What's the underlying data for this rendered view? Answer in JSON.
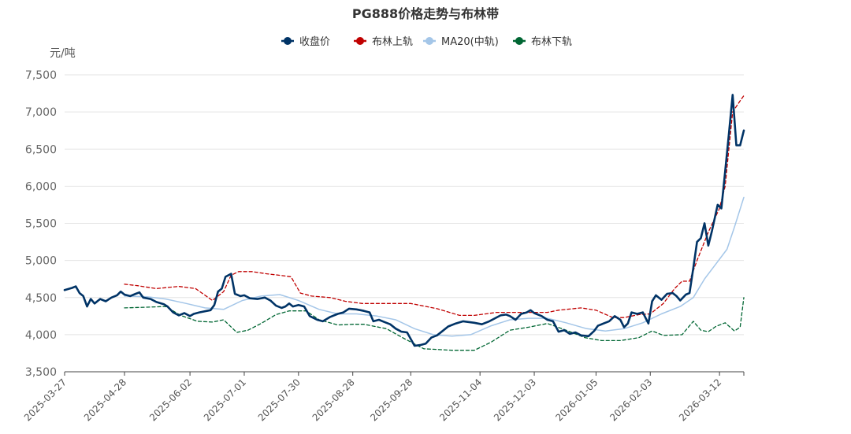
{
  "chart_data": {
    "type": "line",
    "title": "PG888价格走势与布林带",
    "ylabel": "元/吨",
    "ylim": [
      3500,
      7500
    ],
    "yticks": [
      "3,500",
      "4,000",
      "4,500",
      "5,000",
      "5,500",
      "6,000",
      "6,500",
      "7,000",
      "7,500"
    ],
    "ytick_values": [
      3500,
      4000,
      4500,
      5000,
      5500,
      6000,
      6500,
      7000,
      7500
    ],
    "xticks": [
      "2025-03-27",
      "2025-04-28",
      "2025-06-02",
      "2025-07-01",
      "2025-07-30",
      "2025-08-28",
      "2025-09-28",
      "2025-11-04",
      "2025-12-03",
      "2026-01-05",
      "2026-02-03",
      "2026-03-12"
    ],
    "grid": "horizontal",
    "legend_position": "top",
    "colors": {
      "close": "#003366",
      "upper": "#c00000",
      "ma20": "#a4c6e8",
      "lower": "#006633"
    },
    "series": [
      {
        "name": "收盘价",
        "key": "close",
        "style": "solid",
        "points": [
          [
            "2025-03-27",
            4600
          ],
          [
            "2025-03-31",
            4630
          ],
          [
            "2025-04-02",
            4650
          ],
          [
            "2025-04-04",
            4560
          ],
          [
            "2025-04-06",
            4520
          ],
          [
            "2025-04-08",
            4380
          ],
          [
            "2025-04-10",
            4480
          ],
          [
            "2025-04-12",
            4420
          ],
          [
            "2025-04-15",
            4480
          ],
          [
            "2025-04-18",
            4450
          ],
          [
            "2025-04-21",
            4500
          ],
          [
            "2025-04-24",
            4530
          ],
          [
            "2025-04-26",
            4580
          ],
          [
            "2025-04-28",
            4540
          ],
          [
            "2025-05-01",
            4520
          ],
          [
            "2025-05-04",
            4550
          ],
          [
            "2025-05-06",
            4570
          ],
          [
            "2025-05-08",
            4500
          ],
          [
            "2025-05-12",
            4480
          ],
          [
            "2025-05-15",
            4440
          ],
          [
            "2025-05-19",
            4410
          ],
          [
            "2025-05-21",
            4380
          ],
          [
            "2025-05-24",
            4300
          ],
          [
            "2025-05-27",
            4260
          ],
          [
            "2025-05-30",
            4290
          ],
          [
            "2025-06-02",
            4250
          ],
          [
            "2025-06-04",
            4280
          ],
          [
            "2025-06-07",
            4300
          ],
          [
            "2025-06-11",
            4320
          ],
          [
            "2025-06-13",
            4330
          ],
          [
            "2025-06-15",
            4400
          ],
          [
            "2025-06-17",
            4580
          ],
          [
            "2025-06-19",
            4620
          ],
          [
            "2025-06-21",
            4780
          ],
          [
            "2025-06-24",
            4820
          ],
          [
            "2025-06-26",
            4550
          ],
          [
            "2025-06-29",
            4520
          ],
          [
            "2025-07-01",
            4530
          ],
          [
            "2025-07-04",
            4490
          ],
          [
            "2025-07-08",
            4480
          ],
          [
            "2025-07-12",
            4500
          ],
          [
            "2025-07-15",
            4460
          ],
          [
            "2025-07-18",
            4390
          ],
          [
            "2025-07-21",
            4360
          ],
          [
            "2025-07-23",
            4380
          ],
          [
            "2025-07-25",
            4420
          ],
          [
            "2025-07-27",
            4380
          ],
          [
            "2025-07-30",
            4400
          ],
          [
            "2025-08-02",
            4380
          ],
          [
            "2025-08-05",
            4250
          ],
          [
            "2025-08-09",
            4200
          ],
          [
            "2025-08-12",
            4180
          ],
          [
            "2025-08-16",
            4240
          ],
          [
            "2025-08-20",
            4280
          ],
          [
            "2025-08-23",
            4300
          ],
          [
            "2025-08-26",
            4350
          ],
          [
            "2025-08-30",
            4340
          ],
          [
            "2025-09-03",
            4320
          ],
          [
            "2025-09-06",
            4300
          ],
          [
            "2025-09-08",
            4180
          ],
          [
            "2025-09-11",
            4200
          ],
          [
            "2025-09-14",
            4170
          ],
          [
            "2025-09-17",
            4140
          ],
          [
            "2025-09-20",
            4080
          ],
          [
            "2025-09-23",
            4040
          ],
          [
            "2025-09-26",
            4030
          ],
          [
            "2025-09-30",
            3850
          ],
          [
            "2025-10-03",
            3860
          ],
          [
            "2025-10-06",
            3880
          ],
          [
            "2025-10-09",
            3960
          ],
          [
            "2025-10-12",
            3990
          ],
          [
            "2025-10-15",
            4050
          ],
          [
            "2025-10-18",
            4110
          ],
          [
            "2025-10-22",
            4150
          ],
          [
            "2025-10-26",
            4180
          ],
          [
            "2025-11-01",
            4160
          ],
          [
            "2025-11-05",
            4140
          ],
          [
            "2025-11-09",
            4180
          ],
          [
            "2025-11-12",
            4220
          ],
          [
            "2025-11-15",
            4260
          ],
          [
            "2025-11-18",
            4270
          ],
          [
            "2025-11-20",
            4250
          ],
          [
            "2025-11-23",
            4200
          ],
          [
            "2025-11-26",
            4280
          ],
          [
            "2025-11-29",
            4300
          ],
          [
            "2025-12-01",
            4330
          ],
          [
            "2025-12-03",
            4290
          ],
          [
            "2025-12-07",
            4250
          ],
          [
            "2025-12-10",
            4200
          ],
          [
            "2025-12-13",
            4180
          ],
          [
            "2025-12-16",
            4040
          ],
          [
            "2025-12-19",
            4060
          ],
          [
            "2025-12-22",
            4010
          ],
          [
            "2025-12-25",
            4030
          ],
          [
            "2025-12-28",
            3990
          ],
          [
            "2026-01-01",
            3980
          ],
          [
            "2026-01-04",
            4050
          ],
          [
            "2026-01-06",
            4120
          ],
          [
            "2026-01-09",
            4150
          ],
          [
            "2026-01-12",
            4180
          ],
          [
            "2026-01-15",
            4250
          ],
          [
            "2026-01-18",
            4200
          ],
          [
            "2026-01-20",
            4100
          ],
          [
            "2026-01-22",
            4150
          ],
          [
            "2026-01-24",
            4300
          ],
          [
            "2026-01-27",
            4280
          ],
          [
            "2026-01-30",
            4300
          ],
          [
            "2026-02-01",
            4200
          ],
          [
            "2026-02-02",
            4150
          ],
          [
            "2026-02-04",
            4450
          ],
          [
            "2026-02-06",
            4530
          ],
          [
            "2026-02-09",
            4470
          ],
          [
            "2026-02-12",
            4550
          ],
          [
            "2026-02-15",
            4560
          ],
          [
            "2026-02-17",
            4520
          ],
          [
            "2026-02-19",
            4460
          ],
          [
            "2026-02-22",
            4540
          ],
          [
            "2026-02-24",
            4560
          ],
          [
            "2026-02-26",
            4900
          ],
          [
            "2026-02-28",
            5250
          ],
          [
            "2026-03-02",
            5300
          ],
          [
            "2026-03-04",
            5500
          ],
          [
            "2026-03-06",
            5200
          ],
          [
            "2026-03-08",
            5400
          ],
          [
            "2026-03-11",
            5750
          ],
          [
            "2026-03-13",
            5700
          ],
          [
            "2026-03-15",
            6200
          ],
          [
            "2026-03-17",
            6700
          ],
          [
            "2026-03-19",
            7230
          ],
          [
            "2026-03-21",
            6550
          ],
          [
            "2026-03-23",
            6550
          ],
          [
            "2026-03-25",
            6750
          ]
        ]
      },
      {
        "name": "布林上轨",
        "key": "upper",
        "style": "dashed",
        "points": [
          [
            "2025-04-28",
            4680
          ],
          [
            "2025-05-05",
            4660
          ],
          [
            "2025-05-15",
            4620
          ],
          [
            "2025-05-27",
            4650
          ],
          [
            "2025-06-05",
            4620
          ],
          [
            "2025-06-14",
            4460
          ],
          [
            "2025-06-20",
            4580
          ],
          [
            "2025-06-24",
            4800
          ],
          [
            "2025-06-28",
            4850
          ],
          [
            "2025-07-05",
            4850
          ],
          [
            "2025-07-13",
            4820
          ],
          [
            "2025-07-20",
            4800
          ],
          [
            "2025-07-26",
            4780
          ],
          [
            "2025-07-31",
            4560
          ],
          [
            "2025-08-06",
            4520
          ],
          [
            "2025-08-16",
            4500
          ],
          [
            "2025-08-24",
            4450
          ],
          [
            "2025-09-02",
            4420
          ],
          [
            "2025-09-16",
            4420
          ],
          [
            "2025-09-28",
            4420
          ],
          [
            "2025-10-12",
            4350
          ],
          [
            "2025-10-24",
            4260
          ],
          [
            "2025-11-01",
            4260
          ],
          [
            "2025-11-13",
            4300
          ],
          [
            "2025-11-26",
            4300
          ],
          [
            "2025-12-03",
            4300
          ],
          [
            "2025-12-10",
            4300
          ],
          [
            "2025-12-16",
            4330
          ],
          [
            "2025-12-28",
            4360
          ],
          [
            "2026-01-05",
            4330
          ],
          [
            "2026-01-14",
            4230
          ],
          [
            "2026-01-20",
            4230
          ],
          [
            "2026-01-28",
            4270
          ],
          [
            "2026-02-03",
            4280
          ],
          [
            "2026-02-10",
            4420
          ],
          [
            "2026-02-16",
            4620
          ],
          [
            "2026-02-20",
            4720
          ],
          [
            "2026-02-24",
            4720
          ],
          [
            "2026-02-28",
            5000
          ],
          [
            "2026-03-06",
            5380
          ],
          [
            "2026-03-12",
            5700
          ],
          [
            "2026-03-15",
            6000
          ],
          [
            "2026-03-17",
            6500
          ],
          [
            "2026-03-19",
            7000
          ],
          [
            "2026-03-23",
            7150
          ],
          [
            "2026-03-25",
            7220
          ]
        ]
      },
      {
        "name": "MA20(中轨)",
        "key": "ma20",
        "style": "solid",
        "points": [
          [
            "2025-04-28",
            4520
          ],
          [
            "2025-05-10",
            4510
          ],
          [
            "2025-05-20",
            4480
          ],
          [
            "2025-05-31",
            4420
          ],
          [
            "2025-06-10",
            4360
          ],
          [
            "2025-06-20",
            4340
          ],
          [
            "2025-06-30",
            4460
          ],
          [
            "2025-07-10",
            4520
          ],
          [
            "2025-07-20",
            4540
          ],
          [
            "2025-07-30",
            4460
          ],
          [
            "2025-08-10",
            4340
          ],
          [
            "2025-08-20",
            4280
          ],
          [
            "2025-08-30",
            4280
          ],
          [
            "2025-09-10",
            4250
          ],
          [
            "2025-09-20",
            4200
          ],
          [
            "2025-09-30",
            4080
          ],
          [
            "2025-10-10",
            4000
          ],
          [
            "2025-10-20",
            3980
          ],
          [
            "2025-10-30",
            4000
          ],
          [
            "2025-11-10",
            4120
          ],
          [
            "2025-11-20",
            4200
          ],
          [
            "2025-11-30",
            4220
          ],
          [
            "2025-12-10",
            4220
          ],
          [
            "2025-12-20",
            4160
          ],
          [
            "2025-12-31",
            4080
          ],
          [
            "2026-01-10",
            4050
          ],
          [
            "2026-01-20",
            4080
          ],
          [
            "2026-01-30",
            4160
          ],
          [
            "2026-02-09",
            4280
          ],
          [
            "2026-02-19",
            4380
          ],
          [
            "2026-02-26",
            4500
          ],
          [
            "2026-03-04",
            4750
          ],
          [
            "2026-03-10",
            4950
          ],
          [
            "2026-03-16",
            5150
          ],
          [
            "2026-03-20",
            5450
          ],
          [
            "2026-03-25",
            5850
          ]
        ]
      },
      {
        "name": "布林下轨",
        "key": "lower",
        "style": "dashed",
        "points": [
          [
            "2025-04-28",
            4360
          ],
          [
            "2025-05-10",
            4370
          ],
          [
            "2025-05-20",
            4380
          ],
          [
            "2025-05-28",
            4260
          ],
          [
            "2025-06-06",
            4180
          ],
          [
            "2025-06-14",
            4170
          ],
          [
            "2025-06-20",
            4200
          ],
          [
            "2025-06-27",
            4030
          ],
          [
            "2025-07-03",
            4060
          ],
          [
            "2025-07-10",
            4150
          ],
          [
            "2025-07-18",
            4270
          ],
          [
            "2025-07-25",
            4320
          ],
          [
            "2025-08-03",
            4320
          ],
          [
            "2025-08-10",
            4200
          ],
          [
            "2025-08-20",
            4130
          ],
          [
            "2025-08-28",
            4140
          ],
          [
            "2025-09-03",
            4140
          ],
          [
            "2025-09-15",
            4080
          ],
          [
            "2025-09-25",
            3940
          ],
          [
            "2025-10-05",
            3810
          ],
          [
            "2025-10-20",
            3790
          ],
          [
            "2025-11-01",
            3790
          ],
          [
            "2025-11-10",
            3900
          ],
          [
            "2025-11-20",
            4060
          ],
          [
            "2025-11-30",
            4100
          ],
          [
            "2025-12-10",
            4150
          ],
          [
            "2025-12-20",
            4060
          ],
          [
            "2025-12-30",
            3960
          ],
          [
            "2026-01-08",
            3920
          ],
          [
            "2026-01-18",
            3920
          ],
          [
            "2026-01-28",
            3960
          ],
          [
            "2026-02-04",
            4050
          ],
          [
            "2026-02-10",
            3990
          ],
          [
            "2026-02-20",
            4000
          ],
          [
            "2026-02-26",
            4180
          ],
          [
            "2026-03-02",
            4060
          ],
          [
            "2026-03-06",
            4040
          ],
          [
            "2026-03-10",
            4110
          ],
          [
            "2026-03-15",
            4160
          ],
          [
            "2026-03-20",
            4050
          ],
          [
            "2026-03-23",
            4100
          ],
          [
            "2026-03-25",
            4500
          ]
        ]
      }
    ]
  }
}
